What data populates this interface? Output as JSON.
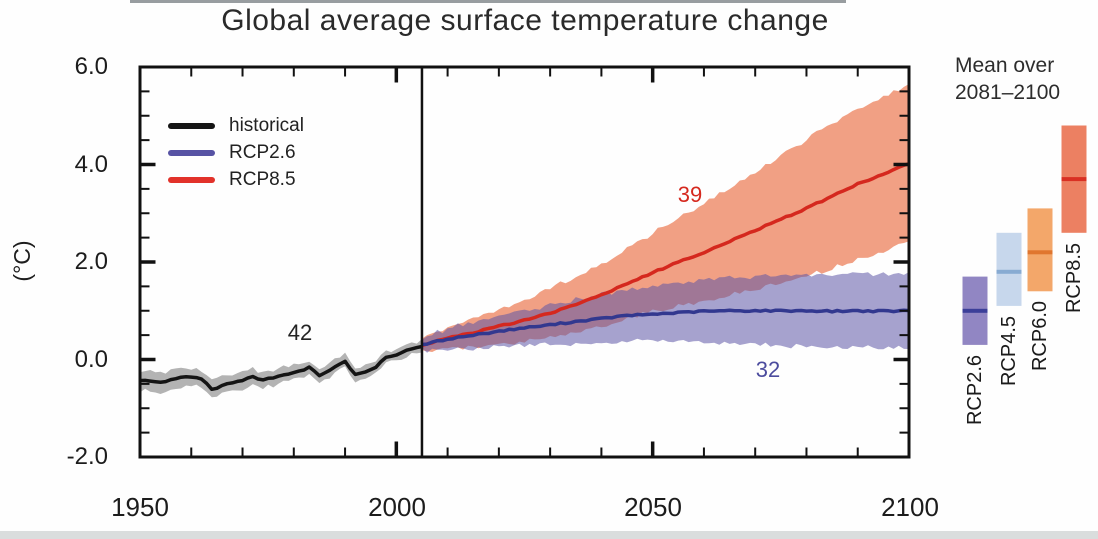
{
  "title": "Global average surface temperature change",
  "axes": {
    "y_unit_label": "(°C)",
    "y_tick_labels": [
      "6.0",
      "4.0",
      "2.0",
      "0.0",
      "-2.0"
    ],
    "x_tick_labels": [
      "1950",
      "2000",
      "2050",
      "2100"
    ]
  },
  "legend": {
    "items": [
      {
        "label": "historical",
        "color": "#151515"
      },
      {
        "label": "RCP2.6",
        "color": "#5753a4"
      },
      {
        "label": "RCP8.5",
        "color": "#e2322a"
      }
    ]
  },
  "annotations": [
    {
      "text": "42",
      "color": "#232323",
      "meaning": "number of models historical"
    },
    {
      "text": "39",
      "color": "#d5281e",
      "meaning": "number of models RCP8.5"
    },
    {
      "text": "32",
      "color": "#4c4c9e",
      "meaning": "number of models RCP2.6"
    }
  ],
  "side_panel": {
    "heading_line1": "Mean over",
    "heading_line2": "2081–2100",
    "bar_labels": [
      "RCP2.6",
      "RCP4.5",
      "RCP6.0",
      "RCP8.5"
    ]
  },
  "chart_data": {
    "type": "line",
    "title": "Global average surface temperature change",
    "xlabel": "",
    "ylabel": "(°C)",
    "xlim": [
      1950,
      2100
    ],
    "ylim": [
      -2.0,
      6.0
    ],
    "xticks": [
      1950,
      2000,
      2050,
      2100
    ],
    "yticks": [
      -2.0,
      0.0,
      2.0,
      4.0,
      6.0
    ],
    "grid": false,
    "legend_position": "upper-left-inside",
    "vline_x": 2005,
    "series": [
      {
        "name": "historical",
        "n_models": 42,
        "color": "#141414",
        "band_color": "#b3b3b3",
        "band_opacity": 1.0,
        "x": [
          1950,
          1952,
          1954,
          1956,
          1958,
          1960,
          1962,
          1963,
          1964,
          1966,
          1968,
          1970,
          1972,
          1974,
          1976,
          1978,
          1980,
          1982,
          1983,
          1985,
          1987,
          1989,
          1990,
          1992,
          1994,
          1996,
          1998,
          2000,
          2002,
          2004,
          2005
        ],
        "y": [
          -0.43,
          -0.44,
          -0.46,
          -0.42,
          -0.36,
          -0.36,
          -0.4,
          -0.5,
          -0.62,
          -0.54,
          -0.47,
          -0.43,
          -0.36,
          -0.42,
          -0.38,
          -0.32,
          -0.26,
          -0.22,
          -0.15,
          -0.32,
          -0.22,
          -0.1,
          -0.05,
          -0.31,
          -0.24,
          -0.15,
          0.05,
          0.08,
          0.18,
          0.24,
          0.28
        ],
        "bw": [
          0.2,
          0.2,
          0.2,
          0.19,
          0.19,
          0.19,
          0.18,
          0.18,
          0.18,
          0.18,
          0.18,
          0.17,
          0.17,
          0.17,
          0.16,
          0.16,
          0.16,
          0.15,
          0.15,
          0.15,
          0.14,
          0.14,
          0.14,
          0.14,
          0.13,
          0.13,
          0.13,
          0.12,
          0.12,
          0.12,
          0.12
        ]
      },
      {
        "name": "RCP2.6",
        "n_models": 32,
        "color": "#32388f",
        "band_color": "#5c55a5",
        "band_opacity": 0.55,
        "x": [
          2005,
          2010,
          2015,
          2020,
          2025,
          2030,
          2035,
          2040,
          2045,
          2050,
          2055,
          2060,
          2065,
          2070,
          2075,
          2080,
          2085,
          2090,
          2095,
          2100
        ],
        "y": [
          0.3,
          0.42,
          0.5,
          0.58,
          0.65,
          0.71,
          0.78,
          0.84,
          0.9,
          0.93,
          0.96,
          0.99,
          1.0,
          1.0,
          1.0,
          1.0,
          0.99,
          1.0,
          0.99,
          1.0
        ],
        "bw": [
          0.12,
          0.22,
          0.27,
          0.31,
          0.36,
          0.4,
          0.45,
          0.49,
          0.53,
          0.56,
          0.6,
          0.64,
          0.67,
          0.7,
          0.72,
          0.73,
          0.74,
          0.75,
          0.75,
          0.75
        ]
      },
      {
        "name": "RCP8.5",
        "n_models": 39,
        "color": "#d5281e",
        "band_color": "#ee8f6e",
        "band_opacity": 0.85,
        "x": [
          2005,
          2010,
          2015,
          2020,
          2025,
          2030,
          2035,
          2040,
          2045,
          2050,
          2055,
          2060,
          2065,
          2070,
          2075,
          2080,
          2085,
          2090,
          2095,
          2100
        ],
        "y": [
          0.3,
          0.44,
          0.55,
          0.68,
          0.81,
          0.95,
          1.13,
          1.33,
          1.55,
          1.78,
          2.0,
          2.2,
          2.42,
          2.65,
          2.88,
          3.1,
          3.35,
          3.6,
          3.8,
          4.02
        ],
        "bw": [
          0.12,
          0.22,
          0.3,
          0.36,
          0.43,
          0.5,
          0.57,
          0.64,
          0.72,
          0.8,
          0.9,
          1.0,
          1.1,
          1.2,
          1.3,
          1.4,
          1.48,
          1.55,
          1.58,
          1.6
        ]
      }
    ],
    "side_bars": [
      {
        "label": "RCP2.6",
        "range": [
          0.3,
          1.7
        ],
        "mean": 1.0,
        "color": "#9186c3",
        "line_color": "#3c3f99",
        "x_center": 975
      },
      {
        "label": "RCP4.5",
        "range": [
          1.1,
          2.6
        ],
        "mean": 1.8,
        "color": "#c7d7ec",
        "line_color": "#88abd2",
        "x_center": 1009
      },
      {
        "label": "RCP6.0",
        "range": [
          1.4,
          3.1
        ],
        "mean": 2.2,
        "color": "#f3a76a",
        "line_color": "#e0762f",
        "x_center": 1040
      },
      {
        "label": "RCP8.5",
        "range": [
          2.6,
          4.8
        ],
        "mean": 3.7,
        "color": "#ec8062",
        "line_color": "#d93023",
        "x_center": 1074
      }
    ]
  }
}
